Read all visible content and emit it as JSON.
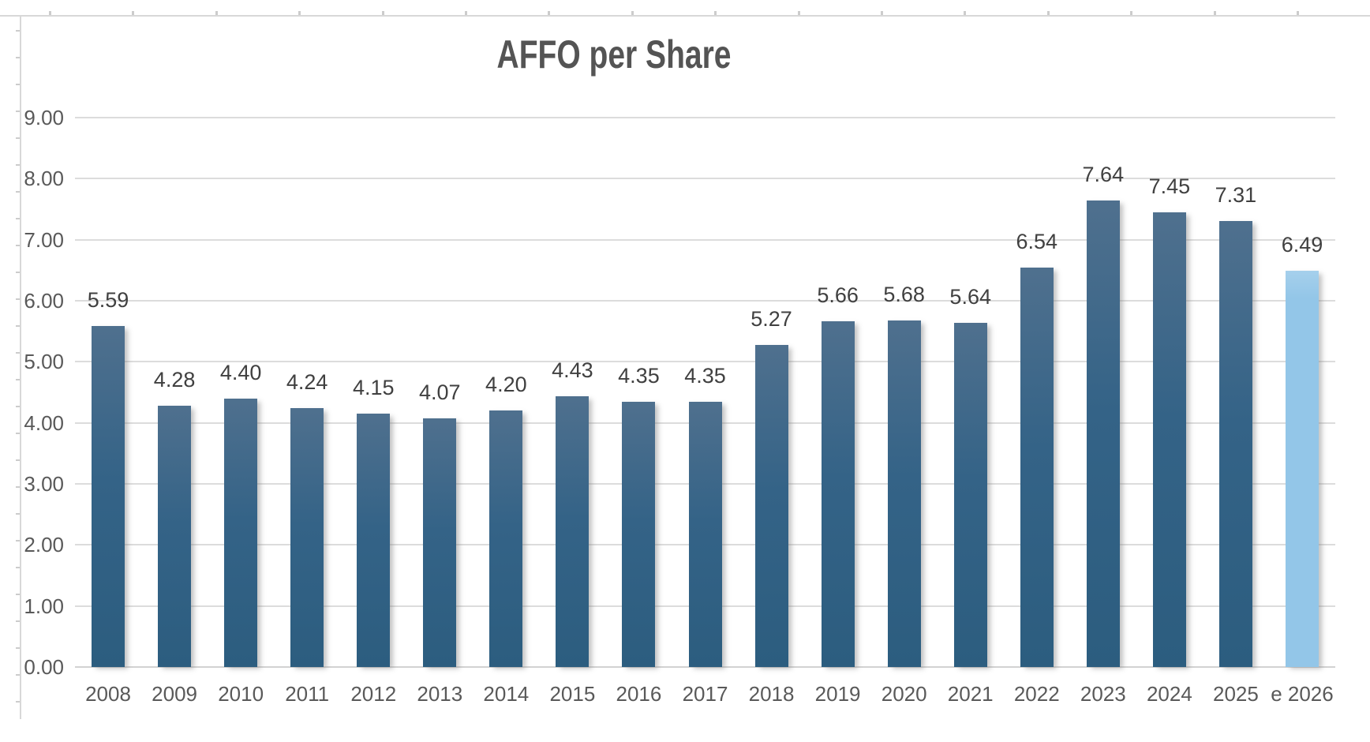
{
  "chart_data": {
    "type": "bar",
    "title": "AFFO per Share",
    "categories": [
      "2008",
      "2009",
      "2010",
      "2011",
      "2012",
      "2013",
      "2014",
      "2015",
      "2016",
      "2017",
      "2018",
      "2019",
      "2020",
      "2021",
      "2022",
      "2023",
      "2024",
      "2025",
      "e 2026"
    ],
    "values": [
      5.59,
      4.28,
      4.4,
      4.24,
      4.15,
      4.07,
      4.2,
      4.43,
      4.35,
      4.35,
      5.27,
      5.66,
      5.68,
      5.64,
      6.54,
      7.64,
      7.45,
      7.31,
      6.49
    ],
    "value_labels": [
      "5.59",
      "4.28",
      "4.40",
      "4.24",
      "4.15",
      "4.07",
      "4.20",
      "4.43",
      "4.35",
      "4.35",
      "5.27",
      "5.66",
      "5.68",
      "5.64",
      "6.54",
      "7.64",
      "7.45",
      "7.31",
      "6.49"
    ],
    "estimate_index": 18,
    "xlabel": "",
    "ylabel": "",
    "ylim": [
      0,
      9
    ],
    "y_ticks": [
      "0.00",
      "1.00",
      "2.00",
      "3.00",
      "4.00",
      "5.00",
      "6.00",
      "7.00",
      "8.00",
      "9.00"
    ],
    "grid": true,
    "legend": "none",
    "colors": {
      "bar_gradient_top": "#4f708e",
      "bar_gradient_mid": "#346387",
      "bar_gradient_bottom": "#2c5d7f",
      "estimate_bar_top": "#a6d0ec",
      "estimate_bar": "#93c6e8",
      "gridline": "#dcdcdc",
      "axis_line": "#d2d2d2",
      "axis_label": "#595959",
      "data_label": "#404040",
      "title": "#545454"
    }
  }
}
